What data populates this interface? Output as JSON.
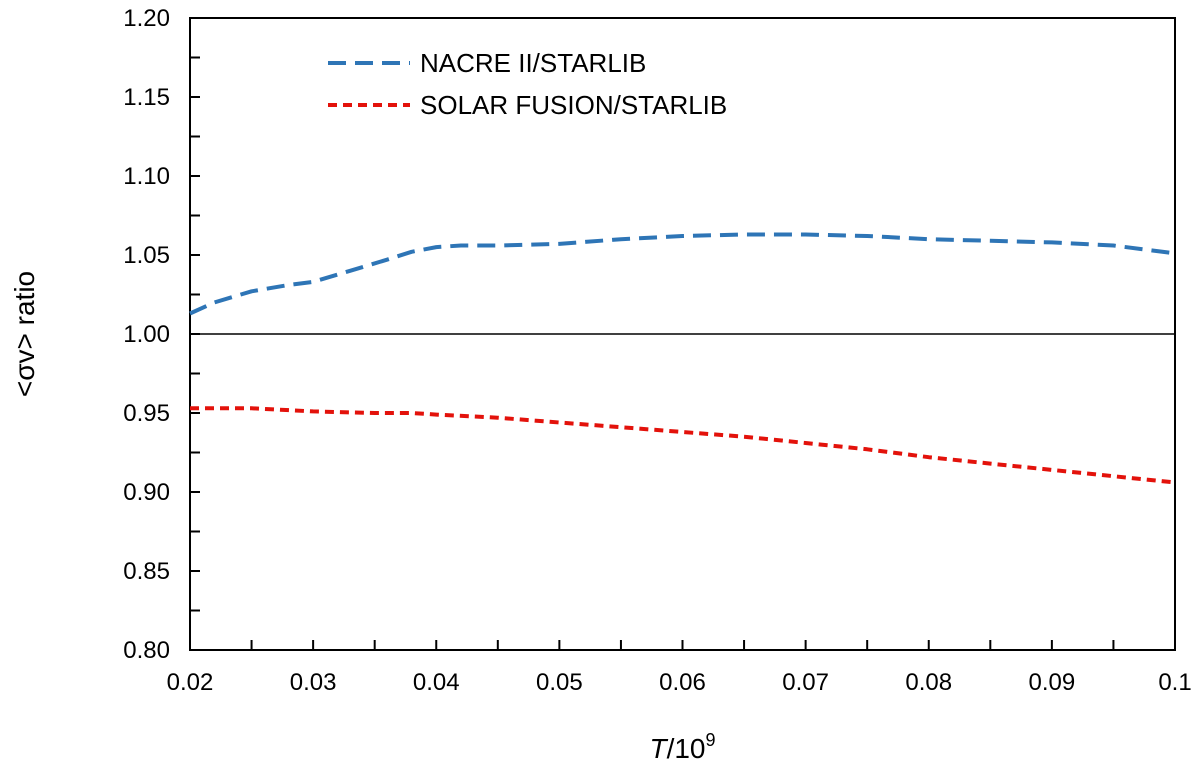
{
  "chart_data": {
    "type": "line",
    "xlabel_italic": "T",
    "xlabel_rest": "/10",
    "xlabel_sup": "9",
    "ylabel": "<σv> ratio",
    "xlim": [
      0.02,
      0.1
    ],
    "ylim": [
      0.8,
      1.2
    ],
    "xticks": [
      "0.02",
      "0.03",
      "0.04",
      "0.05",
      "0.06",
      "0.07",
      "0.08",
      "0.09",
      "0.1"
    ],
    "yticks": [
      "0.80",
      "0.85",
      "0.90",
      "0.95",
      "1.00",
      "1.05",
      "1.10",
      "1.15",
      "1.20"
    ],
    "xtick_values": [
      0.02,
      0.03,
      0.04,
      0.05,
      0.06,
      0.07,
      0.08,
      0.09,
      0.1
    ],
    "ytick_values": [
      0.8,
      0.85,
      0.9,
      0.95,
      1.0,
      1.05,
      1.1,
      1.15,
      1.2
    ],
    "reference_line": 1.0,
    "legend_position": "top-left",
    "series": [
      {
        "name": "NACRE II/STARLIB",
        "color": "#2e75b6",
        "dash": "long-dash",
        "x": [
          0.02,
          0.022,
          0.025,
          0.028,
          0.03,
          0.033,
          0.036,
          0.038,
          0.04,
          0.042,
          0.045,
          0.05,
          0.055,
          0.06,
          0.065,
          0.07,
          0.075,
          0.08,
          0.085,
          0.09,
          0.095,
          0.1
        ],
        "y": [
          1.013,
          1.02,
          1.027,
          1.031,
          1.033,
          1.04,
          1.047,
          1.052,
          1.055,
          1.056,
          1.056,
          1.057,
          1.06,
          1.062,
          1.063,
          1.063,
          1.062,
          1.06,
          1.059,
          1.058,
          1.056,
          1.051
        ]
      },
      {
        "name": "SOLAR FUSION/STARLIB",
        "color": "#e3120b",
        "dash": "short-dash",
        "x": [
          0.02,
          0.025,
          0.03,
          0.035,
          0.038,
          0.04,
          0.045,
          0.05,
          0.055,
          0.06,
          0.065,
          0.07,
          0.075,
          0.08,
          0.085,
          0.09,
          0.095,
          0.1
        ],
        "y": [
          0.953,
          0.953,
          0.951,
          0.95,
          0.95,
          0.949,
          0.947,
          0.944,
          0.941,
          0.938,
          0.935,
          0.931,
          0.927,
          0.922,
          0.918,
          0.914,
          0.91,
          0.906
        ]
      }
    ]
  }
}
